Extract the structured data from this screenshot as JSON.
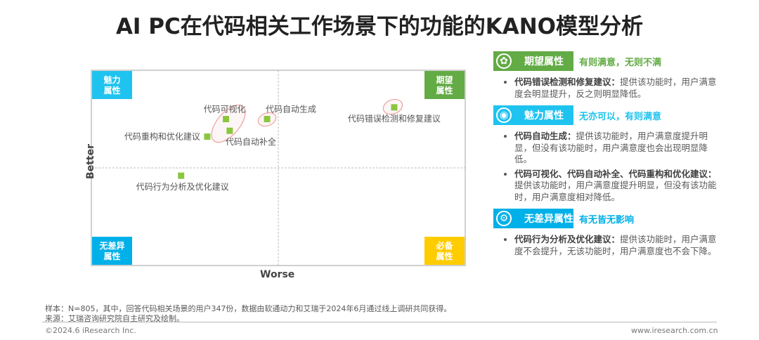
{
  "title": "AI PC在代码相关工作场景下的功能的KANO模型分析",
  "chart_data": {
    "type": "scatter",
    "xlabel": "Worse",
    "ylabel": "Better",
    "xlim": [
      0,
      100
    ],
    "ylim": [
      0,
      100
    ],
    "grid": false,
    "quadrants": {
      "top_left": "魅力\n属性",
      "top_right": "期望\n属性",
      "bottom_left": "无差异\n属性",
      "bottom_right": "必备\n属性"
    },
    "quadrant_colors": {
      "top_left": "#1fc3ef",
      "top_right": "#62ab45",
      "bottom_left": "#00b0e8",
      "bottom_right": "#ffcc00"
    },
    "point_color": "#8cc63f",
    "points": [
      {
        "label": "代码可视化",
        "x": 36,
        "y": 75
      },
      {
        "label": "代码自动补全",
        "x": 37,
        "y": 69
      },
      {
        "label": "代码重构和优化建议",
        "x": 31,
        "y": 66
      },
      {
        "label": "代码自动生成",
        "x": 47,
        "y": 75
      },
      {
        "label": "代码错误检测和修复建议",
        "x": 81,
        "y": 81
      },
      {
        "label": "代码行为分析及优化建议",
        "x": 24,
        "y": 46
      }
    ]
  },
  "legend": [
    {
      "name": "期望属性",
      "sub": "有则满意，无则不满",
      "color": "#62ab45",
      "icon": "ring-icon",
      "items": [
        {
          "b": "代码错误检测和修复建议：",
          "t": "提供该功能时，用户满意度会明显提升，反之则明显降低。"
        }
      ]
    },
    {
      "name": "魅力属性",
      "sub": "无亦可以，有则满意",
      "color": "#1fc3ef",
      "icon": "surprised-face-icon",
      "items": [
        {
          "b": "代码自动生成：",
          "t": "提供该功能时，用户满意度提升明显，但没有该功能时，用户满意度也会出现明显降低。"
        },
        {
          "b": "代码可视化、代码自动补全、代码重构和优化建议：",
          "t": "提供该功能时，用户满意度提升明显，但没有该功能时，用户满意度相对降低。"
        }
      ]
    },
    {
      "name": "无差异属性",
      "sub": "有无皆无影响",
      "color": "#00b0e8",
      "icon": "gear-icon",
      "items": [
        {
          "b": "代码行为分析及优化建议：",
          "t": "提供该功能时，用户满意度不会提升，无该功能时，用户满意度也不会下降。"
        }
      ]
    }
  ],
  "footer": {
    "sample": "样本：N=805，其中，回答代码相关场景的用户347份，数据由软通动力和艾瑞于2024年6月通过线上调研共同获得。",
    "source": "来源：艾瑞咨询研究院自主研究及绘制。",
    "copyright": "©2024.6 iResearch Inc.",
    "url": "www.iresearch.com.cn"
  }
}
